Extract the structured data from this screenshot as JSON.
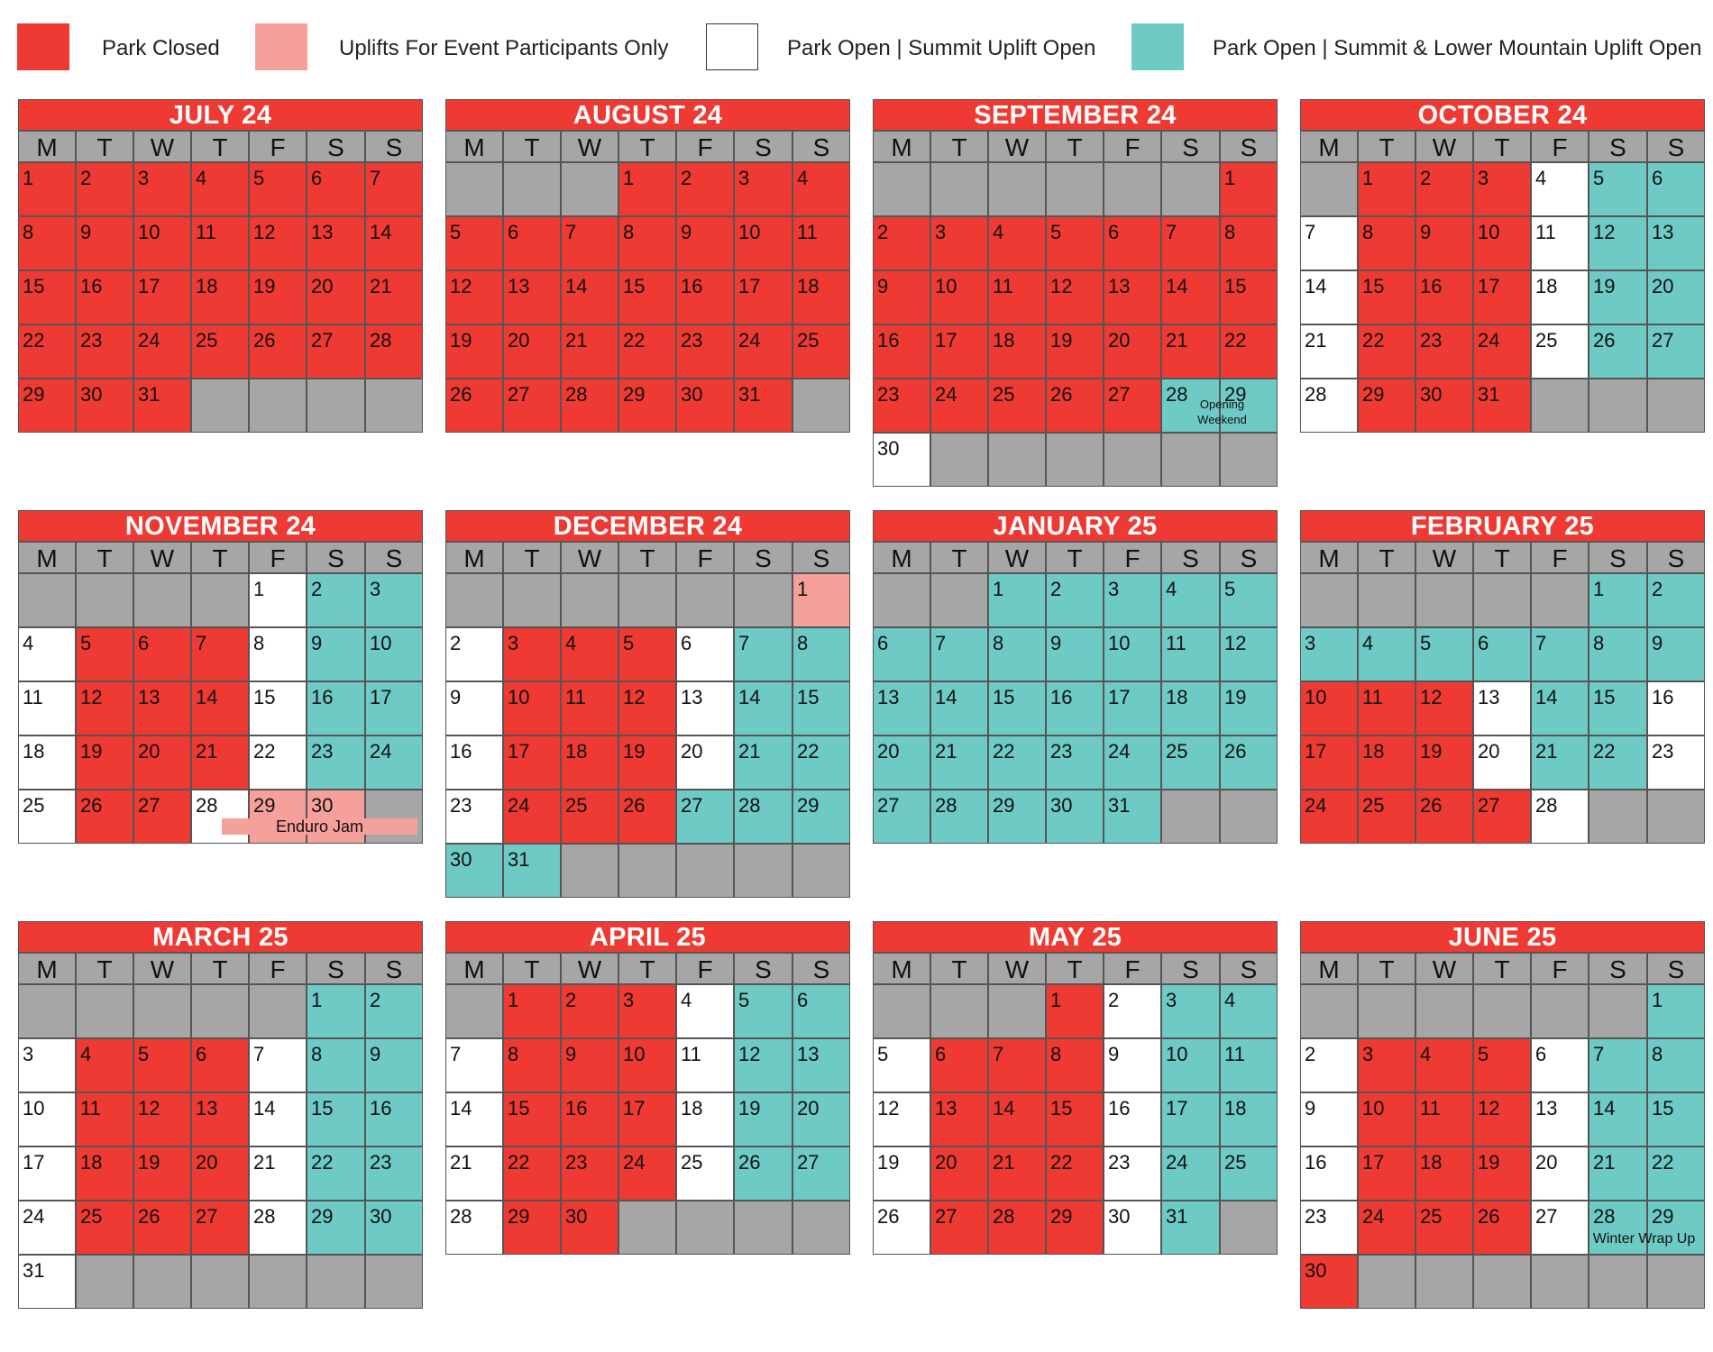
{
  "colors": {
    "closed": "#ee3a33",
    "event": "#f5a09b",
    "summit": "#ffffff",
    "both": "#6dcac5",
    "empty": "#a6a6a6",
    "title_bg": "#ee3a33",
    "header_bg": "#a6a6a6"
  },
  "legend": [
    {
      "status": "closed",
      "label": "Park Closed"
    },
    {
      "status": "event",
      "label": "Uplifts For Event Participants Only"
    },
    {
      "status": "summit",
      "label": "Park Open | Summit Uplift Open"
    },
    {
      "status": "both",
      "label": "Park Open | Summit & Lower Mountain Uplift Open"
    }
  ],
  "day_headers": [
    "M",
    "T",
    "W",
    "T",
    "F",
    "S",
    "S"
  ],
  "months": [
    {
      "title": "JULY 24",
      "start_col": 0,
      "days": 31,
      "status": "CCCCCCCCCCCCCCCCCCCCCCCCCCCCCCC",
      "notes": []
    },
    {
      "title": "AUGUST 24",
      "start_col": 3,
      "days": 31,
      "status": "CCCCCCCCCCCCCCCCCCCCCCCCCCCCCCC",
      "notes": []
    },
    {
      "title": "SEPTEMBER 24",
      "start_col": 6,
      "days": 30,
      "status": "CCCCCCCCCCCCCCCCCCCCCCCCCCCBBS",
      "notes": [
        {
          "text": "Opening Weekend",
          "day": 28,
          "span": 2,
          "style": "small"
        }
      ]
    },
    {
      "title": "OCTOBER 24",
      "start_col": 1,
      "days": 31,
      "status": "CCCSBBSCCCSBBSCCCSBBSCCCSBBSCCC",
      "notes": []
    },
    {
      "title": "NOVEMBER 24",
      "start_col": 4,
      "days": 30,
      "status": "SBBSCCCSBBSCCCSBBSCCCSBBSCCSEE",
      "notes": [
        {
          "text": "Enduro Jam",
          "day": 29,
          "span": 3,
          "style": "bar"
        }
      ]
    },
    {
      "title": "DECEMBER 24",
      "start_col": 6,
      "days": 31,
      "status": "ESCCCSBBSCCCSBBSCCCSBBSCCCBBBBB",
      "notes": []
    },
    {
      "title": "JANUARY 25",
      "start_col": 2,
      "days": 31,
      "status": "BBBBBBBBBBBBBBBBBBBBBBBBBBBBBBB",
      "notes": []
    },
    {
      "title": "FEBRUARY 25",
      "start_col": 5,
      "days": 28,
      "status": "BBBBBBBBBCCCSBBSCCCSBBSCCCCS",
      "notes": []
    },
    {
      "title": "MARCH 25",
      "start_col": 5,
      "days": 31,
      "status": "BBSCCCSBBSCCCSBBSCCCSBBSCCCSBBS",
      "notes": []
    },
    {
      "title": "APRIL 25",
      "start_col": 1,
      "days": 30,
      "status": "CCCSBBSCCCSBBSCCCSBBSCCCSBBSCC",
      "notes": []
    },
    {
      "title": "MAY 25",
      "start_col": 3,
      "days": 31,
      "status": "CSBBSCCCSBBSCCCSBBSCCCSBBSCCCSB",
      "notes": []
    },
    {
      "title": "JUNE 25",
      "start_col": 6,
      "days": 30,
      "status": "BSCCCSBBSCCCSBBSCCCSBBSCCCSBBC",
      "notes": [
        {
          "text": "Winter Wrap Up",
          "day": 28,
          "span": 2,
          "style": "plain"
        }
      ]
    }
  ]
}
